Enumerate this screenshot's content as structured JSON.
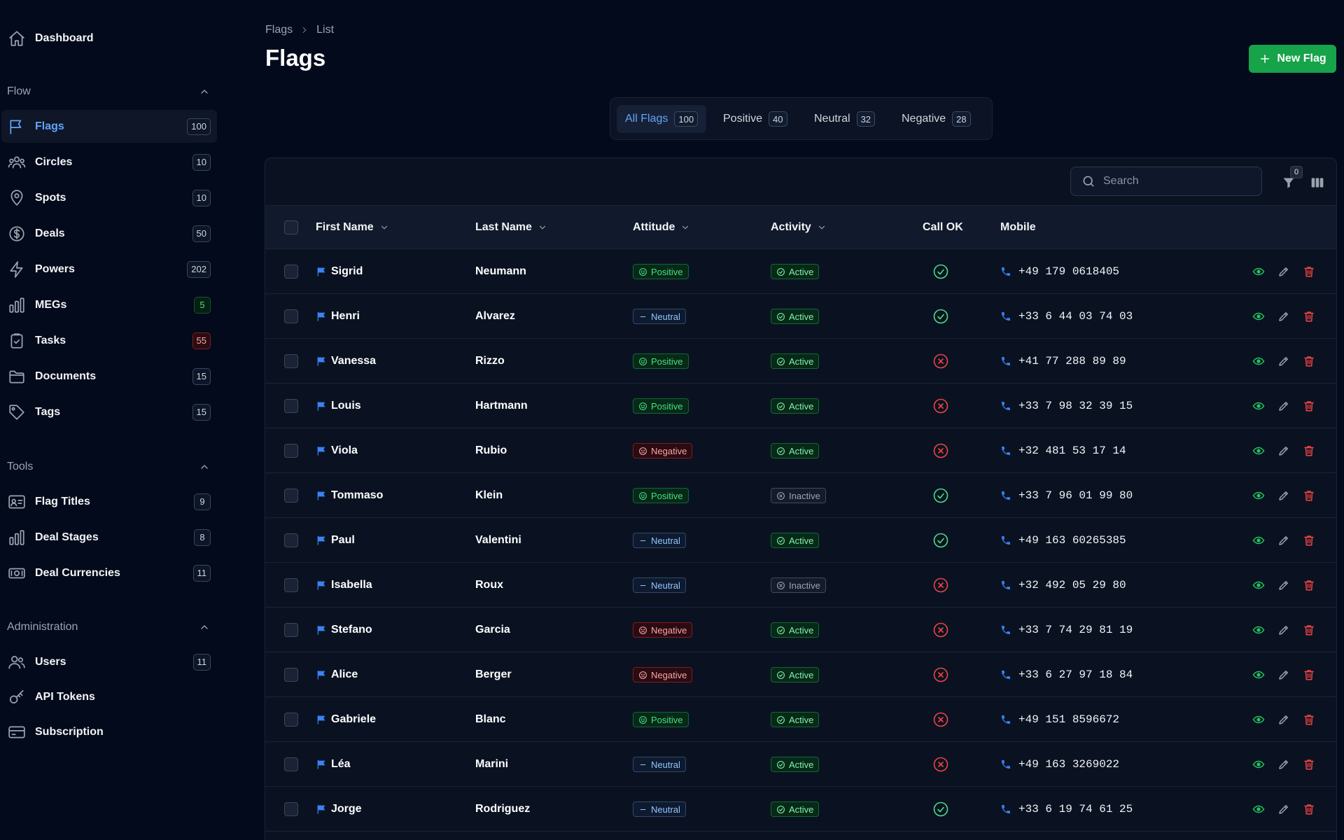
{
  "sidebar": {
    "dashboard_label": "Dashboard",
    "flow": {
      "title": "Flow",
      "items": [
        {
          "label": "Flags",
          "count": "100",
          "icon": "flag-icon",
          "active": true
        },
        {
          "label": "Circles",
          "count": "10",
          "icon": "users-group-icon"
        },
        {
          "label": "Spots",
          "count": "10",
          "icon": "map-pin-icon"
        },
        {
          "label": "Deals",
          "count": "50",
          "icon": "dollar-circle-icon"
        },
        {
          "label": "Powers",
          "count": "202",
          "icon": "bolt-icon"
        },
        {
          "label": "MEGs",
          "count": "5",
          "icon": "bar-chart-icon",
          "tone": "green"
        },
        {
          "label": "Tasks",
          "count": "55",
          "icon": "clipboard-icon",
          "tone": "red"
        },
        {
          "label": "Documents",
          "count": "15",
          "icon": "folder-icon"
        },
        {
          "label": "Tags",
          "count": "15",
          "icon": "tag-icon"
        }
      ]
    },
    "tools": {
      "title": "Tools",
      "items": [
        {
          "label": "Flag Titles",
          "count": "9",
          "icon": "id-card-icon"
        },
        {
          "label": "Deal Stages",
          "count": "8",
          "icon": "bar-chart-icon"
        },
        {
          "label": "Deal Currencies",
          "count": "11",
          "icon": "banknote-icon"
        }
      ]
    },
    "administration": {
      "title": "Administration",
      "items": [
        {
          "label": "Users",
          "count": "11",
          "icon": "users-icon"
        },
        {
          "label": "API Tokens",
          "count": "",
          "icon": "key-icon"
        },
        {
          "label": "Subscription",
          "count": "",
          "icon": "credit-card-icon"
        }
      ]
    }
  },
  "header": {
    "breadcrumb": [
      "Flags",
      "List"
    ],
    "title": "Flags",
    "new_button": "New Flag"
  },
  "tabs": [
    {
      "label": "All Flags",
      "count": "100",
      "active": true
    },
    {
      "label": "Positive",
      "count": "40"
    },
    {
      "label": "Neutral",
      "count": "32"
    },
    {
      "label": "Negative",
      "count": "28"
    }
  ],
  "toolbar": {
    "search_placeholder": "Search",
    "filter_count": "0"
  },
  "table": {
    "columns": [
      "First Name",
      "Last Name",
      "Attitude",
      "Activity",
      "Call OK",
      "Mobile"
    ],
    "rows": [
      {
        "first": "Sigrid",
        "last": "Neumann",
        "attitude": "Positive",
        "activity": "Active",
        "call_ok": true,
        "mobile": "+49 179 0618405"
      },
      {
        "first": "Henri",
        "last": "Alvarez",
        "attitude": "Neutral",
        "activity": "Active",
        "call_ok": true,
        "mobile": "+33 6 44 03 74 03"
      },
      {
        "first": "Vanessa",
        "last": "Rizzo",
        "attitude": "Positive",
        "activity": "Active",
        "call_ok": false,
        "mobile": "+41 77 288 89 89"
      },
      {
        "first": "Louis",
        "last": "Hartmann",
        "attitude": "Positive",
        "activity": "Active",
        "call_ok": false,
        "mobile": "+33 7 98 32 39 15"
      },
      {
        "first": "Viola",
        "last": "Rubio",
        "attitude": "Negative",
        "activity": "Active",
        "call_ok": false,
        "mobile": "+32 481 53 17 14"
      },
      {
        "first": "Tommaso",
        "last": "Klein",
        "attitude": "Positive",
        "activity": "Inactive",
        "call_ok": true,
        "mobile": "+33 7 96 01 99 80"
      },
      {
        "first": "Paul",
        "last": "Valentini",
        "attitude": "Neutral",
        "activity": "Active",
        "call_ok": true,
        "mobile": "+49 163 60265385"
      },
      {
        "first": "Isabella",
        "last": "Roux",
        "attitude": "Neutral",
        "activity": "Inactive",
        "call_ok": false,
        "mobile": "+32 492 05 29 80"
      },
      {
        "first": "Stefano",
        "last": "Garcia",
        "attitude": "Negative",
        "activity": "Active",
        "call_ok": false,
        "mobile": "+33 7 74 29 81 19"
      },
      {
        "first": "Alice",
        "last": "Berger",
        "attitude": "Negative",
        "activity": "Active",
        "call_ok": false,
        "mobile": "+33 6 27 97 18 84"
      },
      {
        "first": "Gabriele",
        "last": "Blanc",
        "attitude": "Positive",
        "activity": "Active",
        "call_ok": false,
        "mobile": "+49 151 8596672"
      },
      {
        "first": "Léa",
        "last": "Marini",
        "attitude": "Neutral",
        "activity": "Active",
        "call_ok": false,
        "mobile": "+49 163 3269022"
      },
      {
        "first": "Jorge",
        "last": "Rodriguez",
        "attitude": "Neutral",
        "activity": "Active",
        "call_ok": true,
        "mobile": "+33 6 19 74 61 25"
      }
    ]
  },
  "colors": {
    "accent": "#60a5fa",
    "primary_button": "#16a34a",
    "positive": "#4ade80",
    "negative": "#ef4444",
    "background": "#030a1b"
  }
}
